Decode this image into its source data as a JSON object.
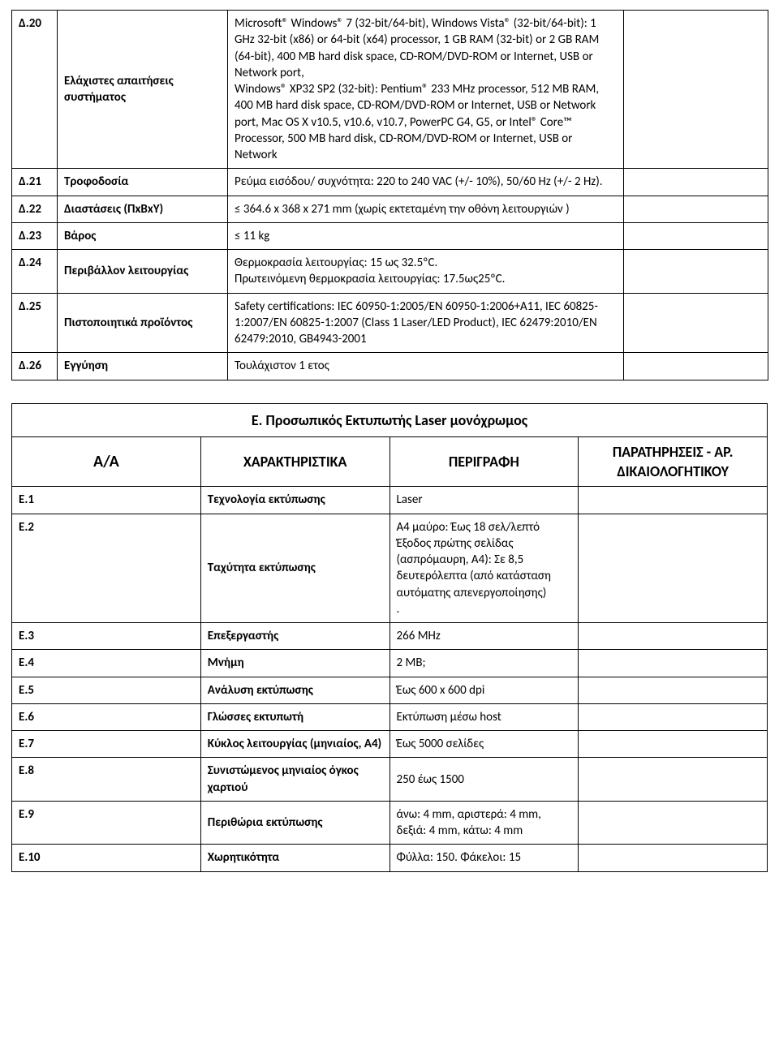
{
  "tableD": {
    "rows": [
      {
        "id": "Δ.20",
        "feat": "Ελάχιστες απαιτήσεις συστήματος",
        "desc": "Microsoft® Windows® 7 (32-bit/64-bit), Windows Vista® (32-bit/64-bit): 1 GHz 32-bit (x86) or 64-bit (x64) processor, 1 GB RAM (32-bit) or 2 GB RAM (64-bit), 400 MB hard disk space, CD-ROM/DVD-ROM or Internet, USB or Network port,\nWindows® XP32 SP2 (32-bit): Pentium® 233 MHz processor, 512 MB RAM, 400 MB hard disk space, CD-ROM/DVD-ROM or Internet, USB or Network port, Mac OS X v10.5, v10.6, v10.7, PowerPC G4, G5, or Intel® Core™ Processor, 500 MB hard disk, CD-ROM/DVD-ROM or Internet, USB or Network"
      },
      {
        "id": "Δ.21",
        "feat": "Τροφοδοσία",
        "desc": "Ρεύμα εισόδου/ συχνότητα: 220 to 240 VAC (+/- 10%), 50/60 Hz (+/- 2 Hz)."
      },
      {
        "id": "Δ.22",
        "feat": "Διαστάσεις (ΠxΒxΥ)",
        "desc": "≤ 364.6 x 368 x 271 mm (χωρίς εκτεταμένη την οθόνη λειτουργιών )"
      },
      {
        "id": "Δ.23",
        "feat": "Βάρος",
        "desc": "≤  11 kg"
      },
      {
        "id": "Δ.24",
        "feat": "Περιβάλλον λειτουργίας",
        "desc": "Θερμοκρασία λειτουργίας: 15 ως 32.5ºC.\nΠρωτεινόμενη θερμοκρασία λειτουργίας: 17.5ως25ºC."
      },
      {
        "id": "Δ.25",
        "feat": "Πιστοποιητικά προϊόντος",
        "desc": "Safety certifications: IEC 60950-1:2005/EN 60950-1:2006+A11, IEC 60825-1:2007/EN 60825-1:2007 (Class 1 Laser/LED Product), IEC 62479:2010/EN 62479:2010, GB4943-2001"
      },
      {
        "id": "Δ.26",
        "feat": "Εγγύηση",
        "desc": "Τουλάχιστον 1 ετος"
      }
    ]
  },
  "tableE": {
    "title": "Ε. Προσωπικός Εκτυπωτής Laser μονόχρωμος",
    "head": {
      "c1": "Α/Α",
      "c2": "ΧΑΡΑΚΤΗΡΙΣΤΙΚΑ",
      "c3": "ΠΕΡΙΓΡΑΦΗ",
      "c4": "ΠΑΡΑΤΗΡΗΣΕΙΣ - ΑΡ. ΔΙΚΑΙΟΛΟΓΗΤΙΚΟΥ"
    },
    "rows": [
      {
        "id": "Ε.1",
        "feat": "Τεχνολογία εκτύπωσης",
        "desc": "Laser"
      },
      {
        "id": "Ε.2",
        "feat": "Ταχύτητα εκτύπωσης",
        "desc": "A4 μαύρο: Έως 18 σελ/λεπτό\nΈξοδος πρώτης σελίδας (ασπρόμαυρη, A4): Σε 8,5 δευτερόλεπτα (από κατάσταση αυτόματης απενεργοποίησης)\n."
      },
      {
        "id": "Ε.3",
        "feat": "Επεξεργαστής",
        "desc": "266 MHz"
      },
      {
        "id": "Ε.4",
        "feat": "Μνήμη",
        "desc": "2 MB;"
      },
      {
        "id": "Ε.5",
        "feat": "Ανάλυση εκτύπωσης",
        "desc": "Έως 600 x 600 dpi"
      },
      {
        "id": "Ε.6",
        "feat": "Γλώσσες εκτυπωτή",
        "desc": "Εκτύπωση μέσω host"
      },
      {
        "id": "Ε.7",
        "feat": "Κύκλος λειτουργίας (μηνιαίος, A4)",
        "desc": "Έως 5000 σελίδες"
      },
      {
        "id": "Ε.8",
        "feat": "Συνιστώμενος μηνιαίος όγκος χαρτιού",
        "desc": "250 έως 1500"
      },
      {
        "id": "Ε.9",
        "feat": "Περιθώρια εκτύπωσης",
        "desc": "άνω: 4 mm, αριστερά: 4 mm, δεξιά: 4 mm, κάτω: 4 mm"
      },
      {
        "id": "Ε.10",
        "feat": "Χωρητικότητα",
        "desc": "Φύλλα: 150. Φάκελοι: 15"
      }
    ]
  }
}
